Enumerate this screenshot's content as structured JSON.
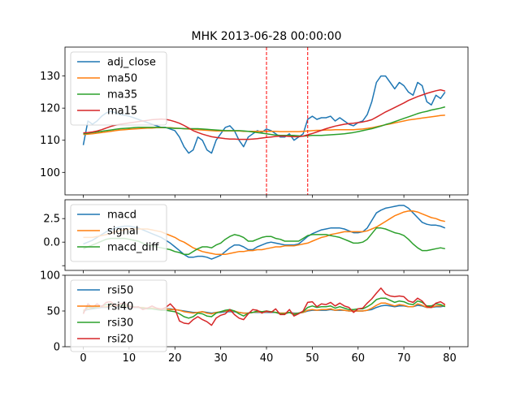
{
  "figure": {
    "title": "MHK 2013-06-28 00:00:00"
  },
  "colors": {
    "blue": "#1f77b4",
    "orange": "#ff7f0e",
    "green": "#2ca02c",
    "red": "#d62728",
    "vline": "#ff0000"
  },
  "chart_data": [
    {
      "type": "line",
      "panel": "price",
      "title": "MHK 2013-06-28 00:00:00",
      "xlim": [
        -4,
        84
      ],
      "ylim": [
        93,
        139
      ],
      "yticks": [
        100,
        110,
        120,
        130
      ],
      "legend": "top-left",
      "vlines": [
        40,
        49
      ],
      "x_range": [
        0,
        79
      ],
      "series": [
        {
          "name": "adj_close",
          "color": "#1f77b4",
          "values": [
            108.5,
            116,
            115,
            116,
            117.5,
            118.5,
            119,
            118.5,
            118,
            117.8,
            117.5,
            117,
            116.5,
            116,
            115.5,
            115,
            114.5,
            114,
            114,
            113.5,
            113,
            111,
            108,
            106,
            107,
            111,
            110,
            107,
            106,
            110,
            112,
            114,
            114.5,
            113,
            110,
            108,
            111,
            112,
            113,
            112.5,
            113.5,
            113,
            112,
            111,
            111,
            112,
            110,
            111,
            112,
            116.5,
            117.5,
            116.5,
            117,
            117,
            117.5,
            116,
            117,
            116,
            115,
            114.5,
            115.5,
            116,
            118,
            122,
            128,
            130,
            130,
            128,
            126,
            128,
            127,
            125,
            124,
            128,
            127,
            122,
            121,
            124,
            123,
            125
          ]
        },
        {
          "name": "ma50",
          "color": "#ff7f0e",
          "values": [
            111.8,
            111.9,
            112,
            112.2,
            112.4,
            112.6,
            112.8,
            113,
            113.2,
            113.3,
            113.4,
            113.5,
            113.6,
            113.7,
            113.8,
            113.8,
            113.9,
            113.9,
            113.9,
            113.9,
            113.8,
            113.7,
            113.6,
            113.5,
            113.4,
            113.3,
            113.2,
            113.1,
            113,
            112.9,
            112.9,
            112.9,
            112.9,
            112.9,
            112.9,
            112.8,
            112.8,
            112.8,
            112.8,
            112.8,
            112.8,
            112.8,
            112.8,
            112.7,
            112.7,
            112.7,
            112.7,
            112.7,
            112.8,
            112.9,
            113,
            113.1,
            113.1,
            113.2,
            113.2,
            113.3,
            113.3,
            113.3,
            113.3,
            113.3,
            113.4,
            113.5,
            113.7,
            113.9,
            114.2,
            114.5,
            114.8,
            115.1,
            115.4,
            115.7,
            116,
            116.3,
            116.5,
            116.7,
            116.9,
            117.1,
            117.3,
            117.5,
            117.7,
            117.8
          ]
        },
        {
          "name": "ma35",
          "color": "#2ca02c",
          "values": [
            112,
            112.2,
            112.4,
            112.6,
            112.8,
            113,
            113.2,
            113.4,
            113.6,
            113.7,
            113.8,
            113.9,
            114,
            114,
            114,
            114,
            114,
            114,
            113.9,
            113.8,
            113.7,
            113.7,
            113.6,
            113.6,
            113.6,
            113.6,
            113.5,
            113.4,
            113.3,
            113.2,
            113.1,
            113,
            113,
            113,
            113,
            112.9,
            112.8,
            112.6,
            112.4,
            112.2,
            112,
            111.8,
            111.6,
            111.5,
            111.5,
            111.5,
            111.5,
            111.4,
            111.3,
            111.4,
            111.5,
            111.5,
            111.5,
            111.6,
            111.7,
            111.8,
            111.9,
            112,
            112.2,
            112.4,
            112.7,
            113,
            113.3,
            113.6,
            114,
            114.4,
            114.9,
            115.3,
            115.8,
            116.3,
            116.8,
            117.3,
            117.8,
            118.3,
            118.7,
            119,
            119.4,
            119.7,
            120,
            120.4
          ]
        },
        {
          "name": "ma15",
          "color": "#d62728",
          "values": [
            112.3,
            112.4,
            112.6,
            112.9,
            113.3,
            113.8,
            114.3,
            114.7,
            115,
            115.2,
            115.4,
            115.6,
            115.8,
            116,
            116.2,
            116.4,
            116.5,
            116.6,
            116.5,
            116.2,
            115.8,
            115.3,
            114.6,
            113.8,
            113,
            112.4,
            111.9,
            111.5,
            111.1,
            110.9,
            110.7,
            110.5,
            110.4,
            110.4,
            110.3,
            110.3,
            110.3,
            110.4,
            110.5,
            110.7,
            110.9,
            111,
            111.2,
            111.3,
            111.3,
            111.2,
            111.1,
            111.1,
            111.3,
            111.7,
            112.1,
            112.6,
            113.1,
            113.6,
            114,
            114.4,
            114.7,
            115,
            115.2,
            115.3,
            115.5,
            115.7,
            116,
            116.4,
            117.2,
            118,
            118.8,
            119.5,
            120.2,
            120.9,
            121.6,
            122.4,
            123,
            123.6,
            124.1,
            124.6,
            125,
            125.4,
            125.7,
            125.3
          ]
        }
      ]
    },
    {
      "type": "line",
      "panel": "macd",
      "xlim": [
        -4,
        84
      ],
      "ylim": [
        -3,
        4.5
      ],
      "yticks": [
        -2.5,
        0.0,
        2.5
      ],
      "ytick_labels": [
        "",
        "0.0",
        "2.5"
      ],
      "legend": "top-left",
      "x_range": [
        0,
        79
      ],
      "series": [
        {
          "name": "macd",
          "color": "#1f77b4",
          "values": [
            -0.2,
            0.0,
            0.2,
            0.5,
            0.8,
            1.1,
            1.3,
            1.5,
            1.6,
            1.7,
            1.7,
            1.6,
            1.5,
            1.3,
            1.1,
            0.9,
            0.7,
            0.5,
            0.2,
            -0.1,
            -0.5,
            -0.9,
            -1.3,
            -1.6,
            -1.6,
            -1.5,
            -1.5,
            -1.6,
            -1.8,
            -1.6,
            -1.4,
            -1.0,
            -0.6,
            -0.3,
            -0.3,
            -0.5,
            -0.8,
            -0.8,
            -0.5,
            -0.3,
            -0.1,
            0.0,
            -0.1,
            -0.2,
            -0.3,
            -0.3,
            -0.3,
            -0.2,
            0.2,
            0.6,
            0.9,
            1.1,
            1.3,
            1.4,
            1.5,
            1.5,
            1.5,
            1.4,
            1.2,
            1.0,
            1.0,
            1.1,
            1.5,
            2.3,
            3.1,
            3.4,
            3.6,
            3.7,
            3.8,
            3.9,
            3.9,
            3.6,
            3.1,
            2.6,
            2.1,
            1.9,
            1.8,
            1.8,
            1.7,
            1.5
          ]
        },
        {
          "name": "signal",
          "color": "#ff7f0e",
          "values": [
            0.5,
            0.5,
            0.5,
            0.6,
            0.7,
            0.8,
            0.9,
            1.1,
            1.2,
            1.3,
            1.4,
            1.4,
            1.4,
            1.4,
            1.4,
            1.3,
            1.2,
            1.1,
            0.9,
            0.7,
            0.5,
            0.2,
            0.0,
            -0.3,
            -0.6,
            -0.8,
            -1.0,
            -1.1,
            -1.2,
            -1.3,
            -1.3,
            -1.3,
            -1.2,
            -1.1,
            -1.0,
            -1.0,
            -0.9,
            -0.9,
            -0.8,
            -0.8,
            -0.7,
            -0.6,
            -0.5,
            -0.5,
            -0.4,
            -0.4,
            -0.4,
            -0.3,
            -0.2,
            -0.1,
            0.1,
            0.3,
            0.5,
            0.6,
            0.8,
            0.9,
            1.0,
            1.1,
            1.1,
            1.1,
            1.1,
            1.1,
            1.2,
            1.4,
            1.6,
            1.9,
            2.2,
            2.5,
            2.8,
            3.0,
            3.2,
            3.3,
            3.3,
            3.2,
            3.0,
            2.8,
            2.6,
            2.5,
            2.3,
            2.2
          ]
        },
        {
          "name": "macd_diff",
          "color": "#2ca02c",
          "values": [
            -0.7,
            -0.5,
            -0.3,
            -0.1,
            0.1,
            0.3,
            0.4,
            0.4,
            0.4,
            0.4,
            0.3,
            0.2,
            0.1,
            -0.1,
            -0.3,
            -0.4,
            -0.5,
            -0.6,
            -0.7,
            -0.8,
            -1.0,
            -1.1,
            -1.3,
            -1.3,
            -1.0,
            -0.7,
            -0.5,
            -0.5,
            -0.6,
            -0.3,
            -0.1,
            0.3,
            0.6,
            0.8,
            0.7,
            0.5,
            0.1,
            0.1,
            0.3,
            0.5,
            0.6,
            0.6,
            0.4,
            0.3,
            0.1,
            0.1,
            0.1,
            0.1,
            0.4,
            0.7,
            0.8,
            0.8,
            0.8,
            0.8,
            0.7,
            0.6,
            0.5,
            0.3,
            0.1,
            -0.1,
            -0.1,
            0.0,
            0.3,
            0.9,
            1.5,
            1.5,
            1.4,
            1.2,
            1.0,
            0.9,
            0.7,
            0.3,
            -0.2,
            -0.6,
            -0.9,
            -0.9,
            -0.8,
            -0.7,
            -0.6,
            -0.7
          ]
        }
      ]
    },
    {
      "type": "line",
      "panel": "rsi",
      "xlim": [
        -4,
        84
      ],
      "ylim": [
        0,
        100
      ],
      "yticks": [
        0,
        50,
        100
      ],
      "xticks": [
        0,
        10,
        20,
        30,
        40,
        50,
        60,
        70,
        80
      ],
      "legend": "top-left",
      "x_range": [
        0,
        79
      ],
      "series": [
        {
          "name": "rsi50",
          "color": "#1f77b4",
          "values": [
            50,
            52,
            53,
            54,
            55,
            55,
            56,
            56,
            56,
            56,
            55,
            55,
            55,
            54,
            54,
            54,
            53,
            53,
            53,
            53,
            52,
            51,
            50,
            49,
            48,
            48,
            49,
            48,
            47,
            48,
            48,
            49,
            49,
            49,
            48,
            47,
            47,
            48,
            48,
            48,
            48,
            48,
            48,
            47,
            47,
            48,
            47,
            47,
            48,
            50,
            51,
            51,
            51,
            51,
            52,
            51,
            51,
            51,
            50,
            50,
            50,
            50,
            51,
            52,
            55,
            57,
            58,
            57,
            56,
            57,
            57,
            56,
            56,
            58,
            57,
            55,
            55,
            56,
            56,
            57
          ]
        },
        {
          "name": "rsi40",
          "color": "#ff7f0e",
          "values": [
            51,
            53,
            54,
            55,
            56,
            56,
            57,
            57,
            57,
            57,
            56,
            56,
            55,
            55,
            54,
            54,
            54,
            53,
            53,
            52,
            52,
            51,
            49,
            48,
            47,
            48,
            49,
            47,
            46,
            48,
            49,
            50,
            50,
            50,
            48,
            47,
            47,
            48,
            49,
            48,
            49,
            49,
            48,
            47,
            47,
            48,
            46,
            47,
            48,
            51,
            52,
            51,
            52,
            52,
            53,
            51,
            52,
            51,
            50,
            50,
            50,
            50,
            51,
            54,
            58,
            61,
            61,
            59,
            57,
            59,
            58,
            56,
            56,
            60,
            58,
            55,
            55,
            57,
            57,
            58
          ]
        },
        {
          "name": "rsi30",
          "color": "#2ca02c",
          "values": [
            48,
            56,
            54,
            56,
            57,
            59,
            60,
            59,
            58,
            58,
            57,
            56,
            55,
            54,
            53,
            53,
            52,
            51,
            51,
            50,
            49,
            46,
            42,
            40,
            42,
            47,
            46,
            43,
            42,
            47,
            49,
            51,
            52,
            50,
            46,
            43,
            47,
            48,
            50,
            49,
            50,
            49,
            48,
            46,
            46,
            48,
            45,
            47,
            49,
            55,
            57,
            55,
            56,
            56,
            57,
            54,
            56,
            54,
            52,
            52,
            53,
            53,
            56,
            60,
            66,
            68,
            68,
            65,
            62,
            64,
            63,
            60,
            59,
            64,
            62,
            57,
            57,
            60,
            59,
            56
          ]
        },
        {
          "name": "rsi20",
          "color": "#d62728",
          "values": [
            46,
            60,
            55,
            60,
            56,
            62,
            63,
            57,
            60,
            61,
            57,
            55,
            56,
            52,
            54,
            57,
            54,
            52,
            55,
            60,
            53,
            36,
            33,
            32,
            38,
            42,
            38,
            35,
            30,
            40,
            44,
            46,
            52,
            45,
            40,
            38,
            46,
            52,
            51,
            47,
            50,
            48,
            53,
            45,
            45,
            52,
            43,
            46,
            50,
            62,
            63,
            56,
            60,
            59,
            62,
            57,
            61,
            57,
            55,
            48,
            53,
            54,
            61,
            67,
            75,
            82,
            74,
            71,
            70,
            71,
            70,
            64,
            62,
            68,
            64,
            56,
            55,
            61,
            63,
            59
          ]
        }
      ]
    }
  ]
}
